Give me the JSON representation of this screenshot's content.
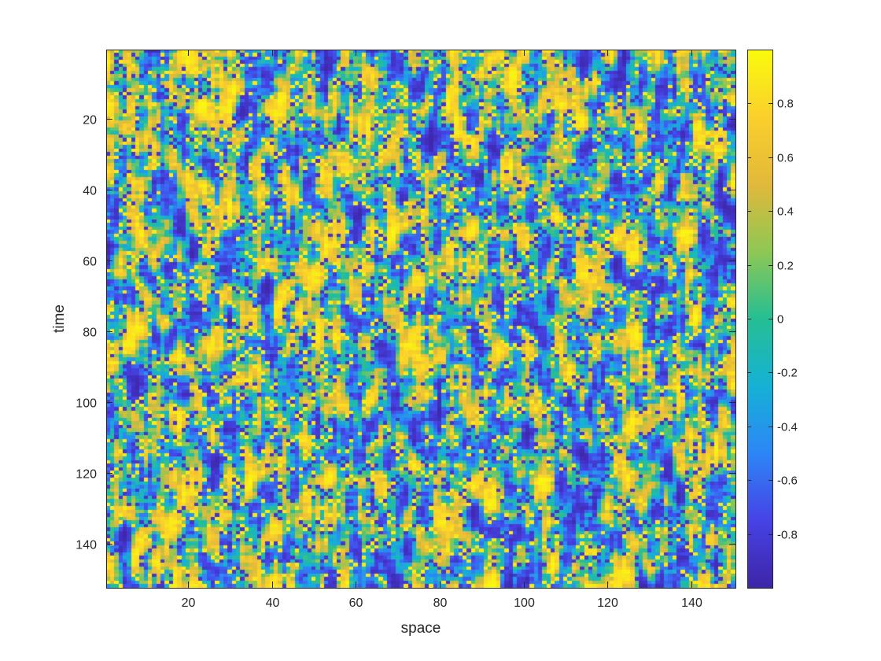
{
  "chart_data": {
    "type": "heatmap",
    "title": "",
    "xlabel": "space",
    "ylabel": "time",
    "x_range": [
      1,
      150
    ],
    "y_range": [
      1,
      152
    ],
    "y_direction": "top-to-bottom",
    "x_ticks": [
      20,
      40,
      60,
      80,
      100,
      120,
      140
    ],
    "y_ticks": [
      20,
      40,
      60,
      80,
      100,
      120,
      140
    ],
    "x_tick_labels": [
      "20",
      "40",
      "60",
      "80",
      "100",
      "120",
      "140"
    ],
    "y_tick_labels": [
      "20",
      "40",
      "60",
      "80",
      "100",
      "120",
      "140"
    ],
    "colorbar": {
      "range": [
        -1,
        1
      ],
      "ticks": [
        0.8,
        0.6,
        0.4,
        0.2,
        0,
        -0.2,
        -0.4,
        -0.6,
        -0.8
      ],
      "tick_labels": [
        "0.8",
        "0.6",
        "0.4",
        "0.2",
        "0",
        "-0.2",
        "-0.4",
        "-0.6",
        "-0.8"
      ],
      "colormap": "parula",
      "placement": "right"
    },
    "grid": false,
    "colormap_stops": [
      "#3e26a8",
      "#4743e6",
      "#2e87f7",
      "#16b2d6",
      "#26bf94",
      "#8fc855",
      "#e2b93b",
      "#fbd02c",
      "#f9fb0e"
    ]
  }
}
